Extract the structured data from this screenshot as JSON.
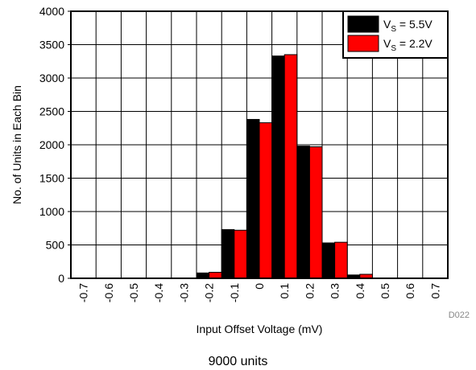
{
  "chart_data": {
    "type": "bar",
    "title": "",
    "xlabel": "Input Offset Voltage (mV)",
    "ylabel": "No. of Units in Each Bin",
    "ylim": [
      0,
      4000
    ],
    "yticks": [
      "0",
      "500",
      "1000",
      "1500",
      "2000",
      "2500",
      "3000",
      "3500",
      "4000"
    ],
    "categories": [
      "-0.7",
      "-0.6",
      "-0.5",
      "-0.4",
      "-0.3",
      "-0.2",
      "-0.1",
      "0",
      "0.1",
      "0.2",
      "0.3",
      "0.4",
      "0.5",
      "0.6",
      "0.7"
    ],
    "series": [
      {
        "name": "V_S = 5.5V",
        "sub": "S",
        "label_prefix": "V",
        "label_suffix": " = 5.5V",
        "color": "#000000",
        "values": [
          0,
          0,
          0,
          0,
          0,
          80,
          730,
          2380,
          3330,
          1980,
          530,
          50,
          0,
          0,
          0
        ]
      },
      {
        "name": "V_S = 2.2V",
        "sub": "S",
        "label_prefix": "V",
        "label_suffix": " = 2.2V",
        "color": "#ff0000",
        "values": [
          0,
          0,
          0,
          0,
          0,
          90,
          720,
          2330,
          3350,
          1970,
          540,
          60,
          0,
          0,
          0
        ]
      }
    ],
    "grid": true,
    "legend_position": "top-right"
  },
  "footnote": "9000 units",
  "figure_code": "D022"
}
